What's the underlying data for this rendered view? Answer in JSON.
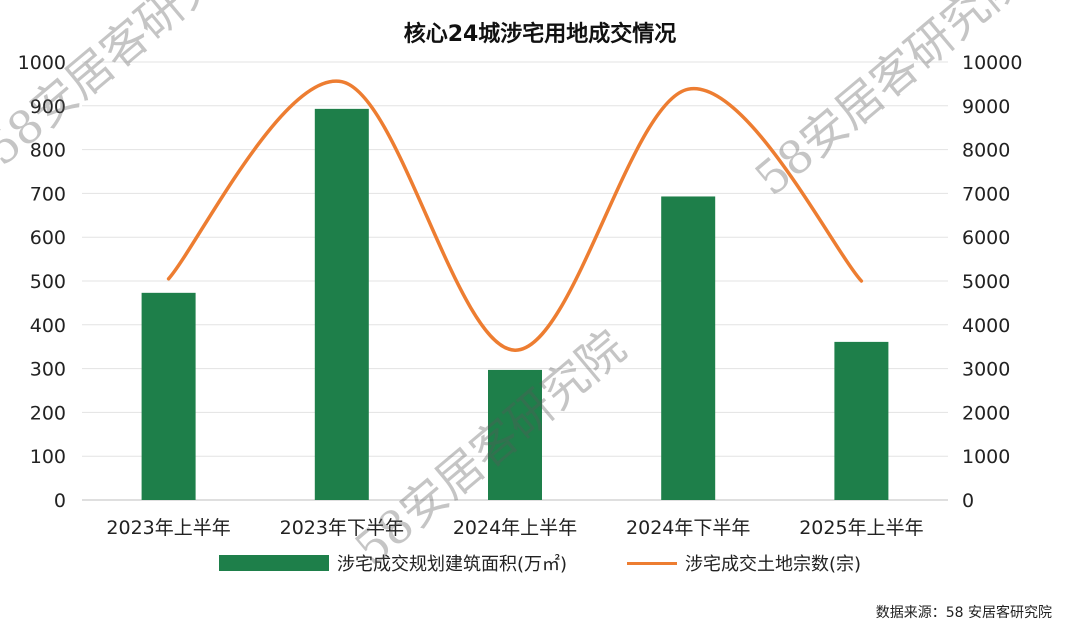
{
  "title": "核心24城涉宅用地成交情况",
  "source": "数据来源：58 安居客研究院",
  "watermark": "58安居客研究院",
  "chart_data": {
    "type": "bar+line",
    "title": "核心24城涉宅用地成交情况",
    "categories": [
      "2023年上半年",
      "2023年下半年",
      "2024年上半年",
      "2024年下半年",
      "2025年上半年"
    ],
    "series": [
      {
        "name": "涉宅成交规划建筑面积(万㎡)",
        "type": "bar",
        "axis": "left",
        "values": [
          473,
          893,
          297,
          693,
          361
        ],
        "color": "#1e7f4a"
      },
      {
        "name": "涉宅成交土地宗数(宗)",
        "type": "line",
        "smooth": true,
        "axis": "right",
        "values": [
          5050,
          9550,
          3420,
          9380,
          5000
        ],
        "color": "#ed7d31"
      }
    ],
    "y_left": {
      "min": 0,
      "max": 1000,
      "step": 100,
      "ticks": [
        "0",
        "100",
        "200",
        "300",
        "400",
        "500",
        "600",
        "700",
        "800",
        "900",
        "1000"
      ]
    },
    "y_right": {
      "min": 0,
      "max": 10000,
      "step": 1000,
      "ticks": [
        "0",
        "1000",
        "2000",
        "3000",
        "4000",
        "5000",
        "6000",
        "7000",
        "8000",
        "9000",
        "10000"
      ]
    },
    "grid": true,
    "legend_position": "bottom"
  }
}
